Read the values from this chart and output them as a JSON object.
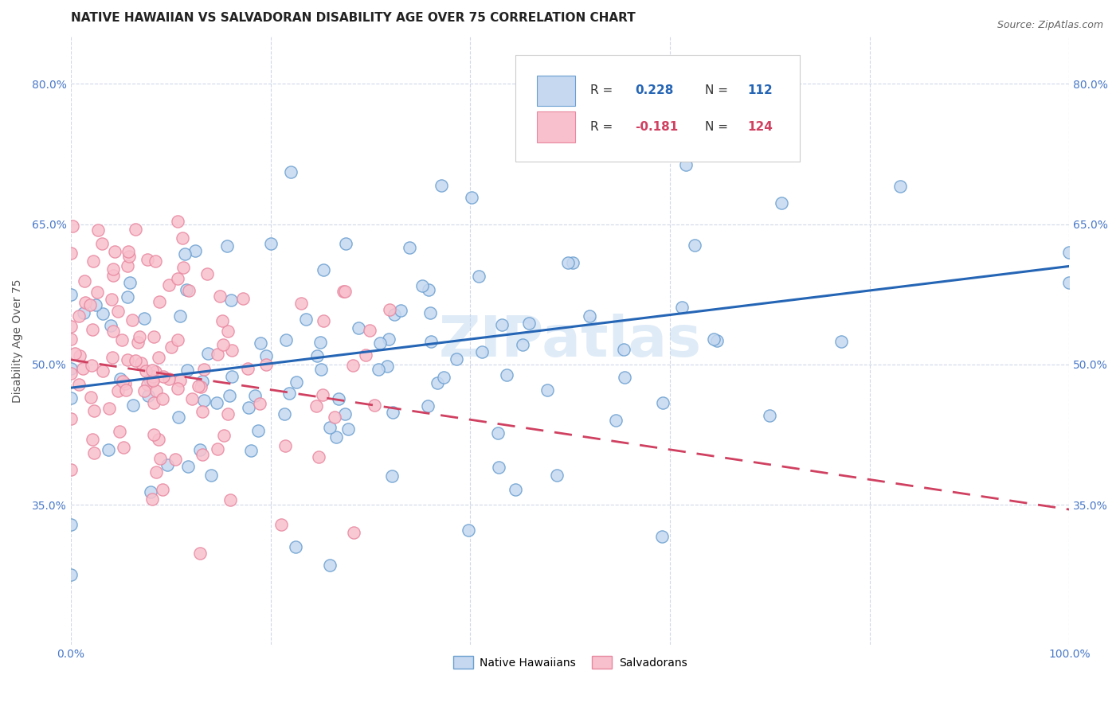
{
  "title": "NATIVE HAWAIIAN VS SALVADORAN DISABILITY AGE OVER 75 CORRELATION CHART",
  "source": "Source: ZipAtlas.com",
  "ylabel": "Disability Age Over 75",
  "x_min": 0.0,
  "x_max": 1.0,
  "y_min": 0.2,
  "y_max": 0.85,
  "x_ticks": [
    0.0,
    0.2,
    0.4,
    0.6,
    0.8,
    1.0
  ],
  "x_tick_labels": [
    "0.0%",
    "",
    "",
    "",
    "",
    "100.0%"
  ],
  "y_ticks": [
    0.35,
    0.5,
    0.65,
    0.8
  ],
  "y_tick_labels": [
    "35.0%",
    "50.0%",
    "65.0%",
    "80.0%"
  ],
  "legend_labels": [
    "Native Hawaiians",
    "Salvadorans"
  ],
  "blue_fill": "#c5d8f0",
  "blue_edge": "#6a9fd0",
  "pink_fill": "#f8c0cc",
  "pink_edge": "#e888a0",
  "blue_line_color": "#2565b5",
  "pink_line_color": "#d04060",
  "blue_R": 0.228,
  "blue_N": 112,
  "pink_R": -0.181,
  "pink_N": 124,
  "title_fontsize": 11,
  "watermark": "ZIPatlas",
  "watermark_color": "#c0d8f0",
  "tick_color": "#4878c8",
  "background_color": "#ffffff",
  "grid_color": "#d0d8e8"
}
